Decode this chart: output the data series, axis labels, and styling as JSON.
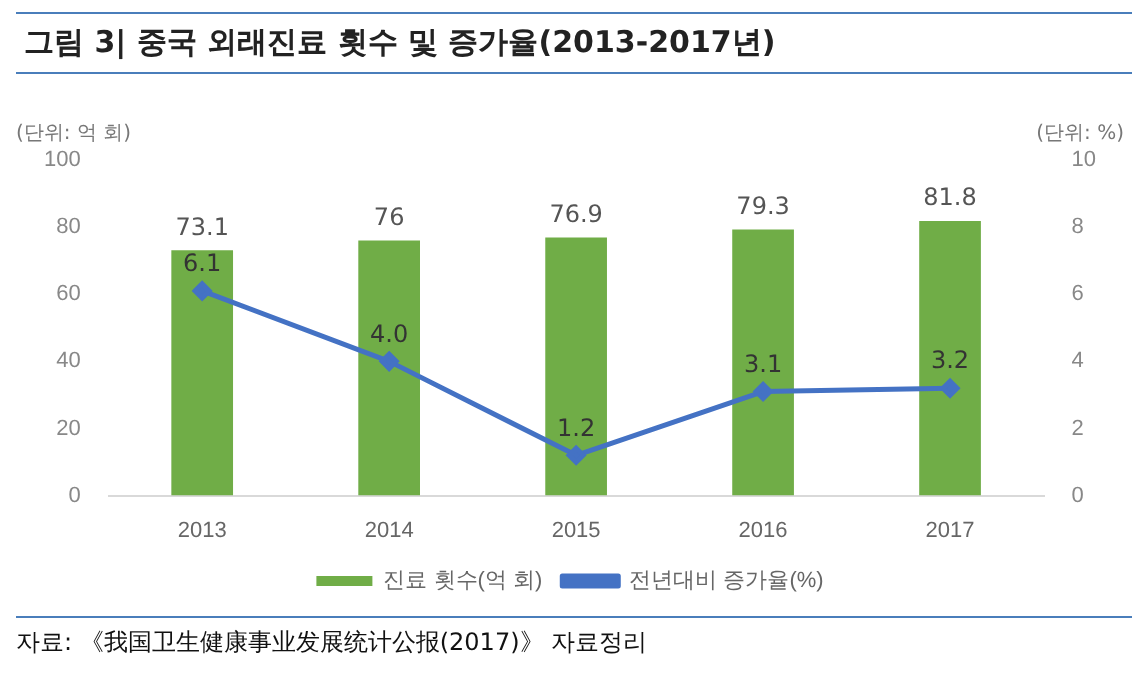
{
  "chart_data": {
    "type": "bar",
    "title": "그림 3| 중국 외래진료 횟수 및 증가율(2013-2017년)",
    "ylabel": "(단위: 억 회)",
    "y2label": "(단위: %)",
    "categories": [
      "2013",
      "2014",
      "2015",
      "2016",
      "2017"
    ],
    "series": [
      {
        "name": "진료 횟수(억 회)",
        "color": "#70ad47",
        "values": [
          73.1,
          76,
          76.9,
          79.3,
          81.8
        ],
        "data_labels": true
      },
      {
        "name": "전년대비 증가율(%)",
        "type": "line",
        "axis": "y2",
        "color": "#4472c4",
        "values": [
          6.1,
          4.0,
          1.2,
          3.1,
          3.2
        ],
        "value_labels": [
          "6.1",
          "4.0",
          "1.2",
          "3.1",
          "3.2"
        ],
        "marker": "diamond"
      }
    ],
    "ylim": [
      0,
      100
    ],
    "yticks": [
      0,
      20,
      40,
      60,
      80,
      100
    ],
    "y2lim": [
      0,
      10
    ],
    "y2ticks": [
      0,
      2,
      4,
      6,
      8,
      10
    ],
    "grid": false,
    "legend": "bottom",
    "annotations": [
      "자료: 《我国卫生健康事业发展统计公报(2017)》 자료정리"
    ]
  }
}
